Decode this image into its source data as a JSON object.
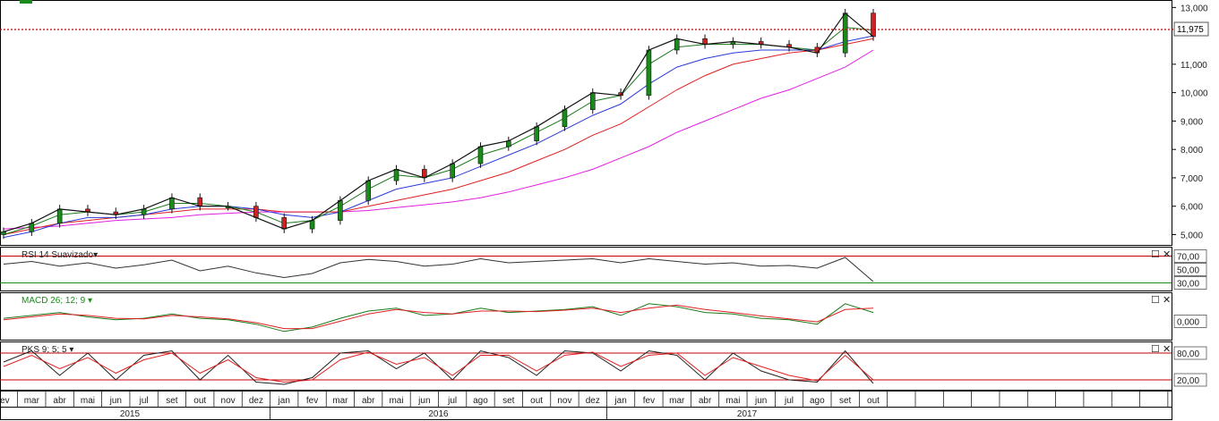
{
  "price_panel": {
    "last_price_label": "11,975",
    "y_ticks": [
      "13,000",
      "11,000",
      "10,000",
      "9,000",
      "8,000",
      "7,000",
      "6,000",
      "5,000"
    ]
  },
  "rsi_panel": {
    "label": "RSI 14 Suavizado",
    "levels": [
      "70,00",
      "50,00",
      "30,00"
    ]
  },
  "macd_panel": {
    "label": "MACD 26; 12; 9",
    "levels": [
      "0,000"
    ]
  },
  "pks_panel": {
    "label": "PKS 9; 5; 5",
    "levels": [
      "80,00",
      "20,00"
    ]
  },
  "time_axis": {
    "months": [
      "fev",
      "mar",
      "abr",
      "mai",
      "jun",
      "jul",
      "set",
      "out",
      "nov",
      "dez",
      "jan",
      "fev",
      "mar",
      "abr",
      "mai",
      "jun",
      "jul",
      "ago",
      "set",
      "out",
      "nov",
      "dez",
      "jan",
      "fev",
      "mar",
      "abr",
      "mai",
      "jun",
      "jul",
      "ago",
      "set",
      "out"
    ],
    "years": [
      "2015",
      "2016",
      "2017"
    ]
  },
  "colors": {
    "ma_short": "#1a7a1a",
    "ma_mid": "#2a3ad8",
    "ma_long": "#e02020",
    "ma_xlong": "#e020e0",
    "candle_up": "#1a8a1a",
    "candle_down": "#d02020",
    "level_line": "#c00000",
    "rsi_low_line": "#1a8a1a"
  },
  "chart_data": [
    {
      "type": "line",
      "name": "price",
      "x": [
        "2015-02",
        "2015-03",
        "2015-04",
        "2015-05",
        "2015-06",
        "2015-07",
        "2015-09",
        "2015-10",
        "2015-11",
        "2015-12",
        "2016-01",
        "2016-02",
        "2016-03",
        "2016-04",
        "2016-05",
        "2016-06",
        "2016-07",
        "2016-08",
        "2016-09",
        "2016-10",
        "2016-11",
        "2016-12",
        "2017-01",
        "2017-02",
        "2017-03",
        "2017-04",
        "2017-05",
        "2017-06",
        "2017-07",
        "2017-08",
        "2017-09",
        "2017-10"
      ],
      "series": [
        {
          "values": [
            5.1,
            5.4,
            5.9,
            5.8,
            5.7,
            5.9,
            6.3,
            6.0,
            6.0,
            5.6,
            5.2,
            5.5,
            6.2,
            6.9,
            7.3,
            7.0,
            7.5,
            8.1,
            8.3,
            8.8,
            9.4,
            10.0,
            9.9,
            11.5,
            11.9,
            11.7,
            11.8,
            11.7,
            11.6,
            11.4,
            12.8,
            11.975
          ]
        },
        {
          "values": [
            5.0,
            5.3,
            5.7,
            5.8,
            5.7,
            5.8,
            6.1,
            6.1,
            6.0,
            5.8,
            5.4,
            5.5,
            6.0,
            6.6,
            7.1,
            7.0,
            7.3,
            7.8,
            8.1,
            8.6,
            9.1,
            9.7,
            9.9,
            11.0,
            11.6,
            11.7,
            11.7,
            11.7,
            11.6,
            11.5,
            12.3,
            12.2
          ]
        },
        {
          "values": [
            4.9,
            5.1,
            5.4,
            5.6,
            5.6,
            5.7,
            5.9,
            6.0,
            6.0,
            5.9,
            5.7,
            5.6,
            5.8,
            6.2,
            6.6,
            6.8,
            7.0,
            7.4,
            7.8,
            8.2,
            8.7,
            9.2,
            9.6,
            10.3,
            10.9,
            11.2,
            11.4,
            11.5,
            11.5,
            11.5,
            11.8,
            12.0
          ]
        },
        {
          "values": [
            5.0,
            5.2,
            5.4,
            5.5,
            5.6,
            5.7,
            5.8,
            5.9,
            5.9,
            5.9,
            5.8,
            5.8,
            5.8,
            6.0,
            6.2,
            6.4,
            6.6,
            6.9,
            7.2,
            7.6,
            8.0,
            8.5,
            8.9,
            9.5,
            10.1,
            10.6,
            11.0,
            11.2,
            11.4,
            11.5,
            11.7,
            11.9
          ]
        },
        {
          "values": [
            5.2,
            5.25,
            5.3,
            5.4,
            5.5,
            5.55,
            5.6,
            5.7,
            5.75,
            5.8,
            5.8,
            5.8,
            5.8,
            5.85,
            5.95,
            6.05,
            6.15,
            6.3,
            6.5,
            6.75,
            7.0,
            7.3,
            7.7,
            8.1,
            8.6,
            9.0,
            9.4,
            9.8,
            10.1,
            10.5,
            10.9,
            11.5
          ]
        }
      ],
      "ylim": [
        4.7,
        13.2
      ]
    },
    {
      "type": "line",
      "name": "rsi",
      "values": [
        58,
        62,
        55,
        60,
        52,
        57,
        64,
        48,
        55,
        45,
        38,
        44,
        60,
        65,
        62,
        55,
        58,
        66,
        60,
        62,
        64,
        66,
        60,
        66,
        62,
        58,
        60,
        55,
        56,
        52,
        68,
        32
      ],
      "ylim": [
        20,
        80
      ],
      "levels": [
        70,
        50,
        30
      ]
    },
    {
      "type": "line",
      "name": "macd",
      "series": [
        {
          "values": [
            0.1,
            0.2,
            0.3,
            0.15,
            0.05,
            0.1,
            0.25,
            0.1,
            0.05,
            -0.1,
            -0.35,
            -0.2,
            0.1,
            0.35,
            0.45,
            0.2,
            0.25,
            0.45,
            0.3,
            0.35,
            0.4,
            0.5,
            0.2,
            0.6,
            0.5,
            0.3,
            0.25,
            0.1,
            0.05,
            -0.1,
            0.6,
            0.3
          ]
        },
        {
          "values": [
            0.05,
            0.15,
            0.25,
            0.2,
            0.1,
            0.08,
            0.2,
            0.15,
            0.08,
            -0.05,
            -0.25,
            -0.25,
            0.0,
            0.25,
            0.4,
            0.3,
            0.25,
            0.35,
            0.35,
            0.33,
            0.38,
            0.45,
            0.3,
            0.45,
            0.55,
            0.4,
            0.3,
            0.18,
            0.08,
            -0.02,
            0.4,
            0.45
          ]
        }
      ],
      "ylim": [
        -0.6,
        0.9
      ]
    },
    {
      "type": "line",
      "name": "pks",
      "series": [
        {
          "values": [
            60,
            85,
            30,
            80,
            20,
            75,
            85,
            20,
            75,
            15,
            10,
            25,
            80,
            85,
            45,
            80,
            20,
            85,
            70,
            30,
            85,
            80,
            40,
            85,
            75,
            20,
            80,
            40,
            20,
            15,
            85,
            12
          ]
        },
        {
          "values": [
            50,
            75,
            45,
            70,
            35,
            65,
            80,
            35,
            65,
            25,
            15,
            20,
            65,
            82,
            55,
            70,
            30,
            75,
            75,
            40,
            75,
            82,
            50,
            75,
            80,
            30,
            70,
            50,
            30,
            18,
            75,
            20
          ]
        }
      ],
      "ylim": [
        0,
        100
      ],
      "levels": [
        80,
        20
      ]
    }
  ]
}
